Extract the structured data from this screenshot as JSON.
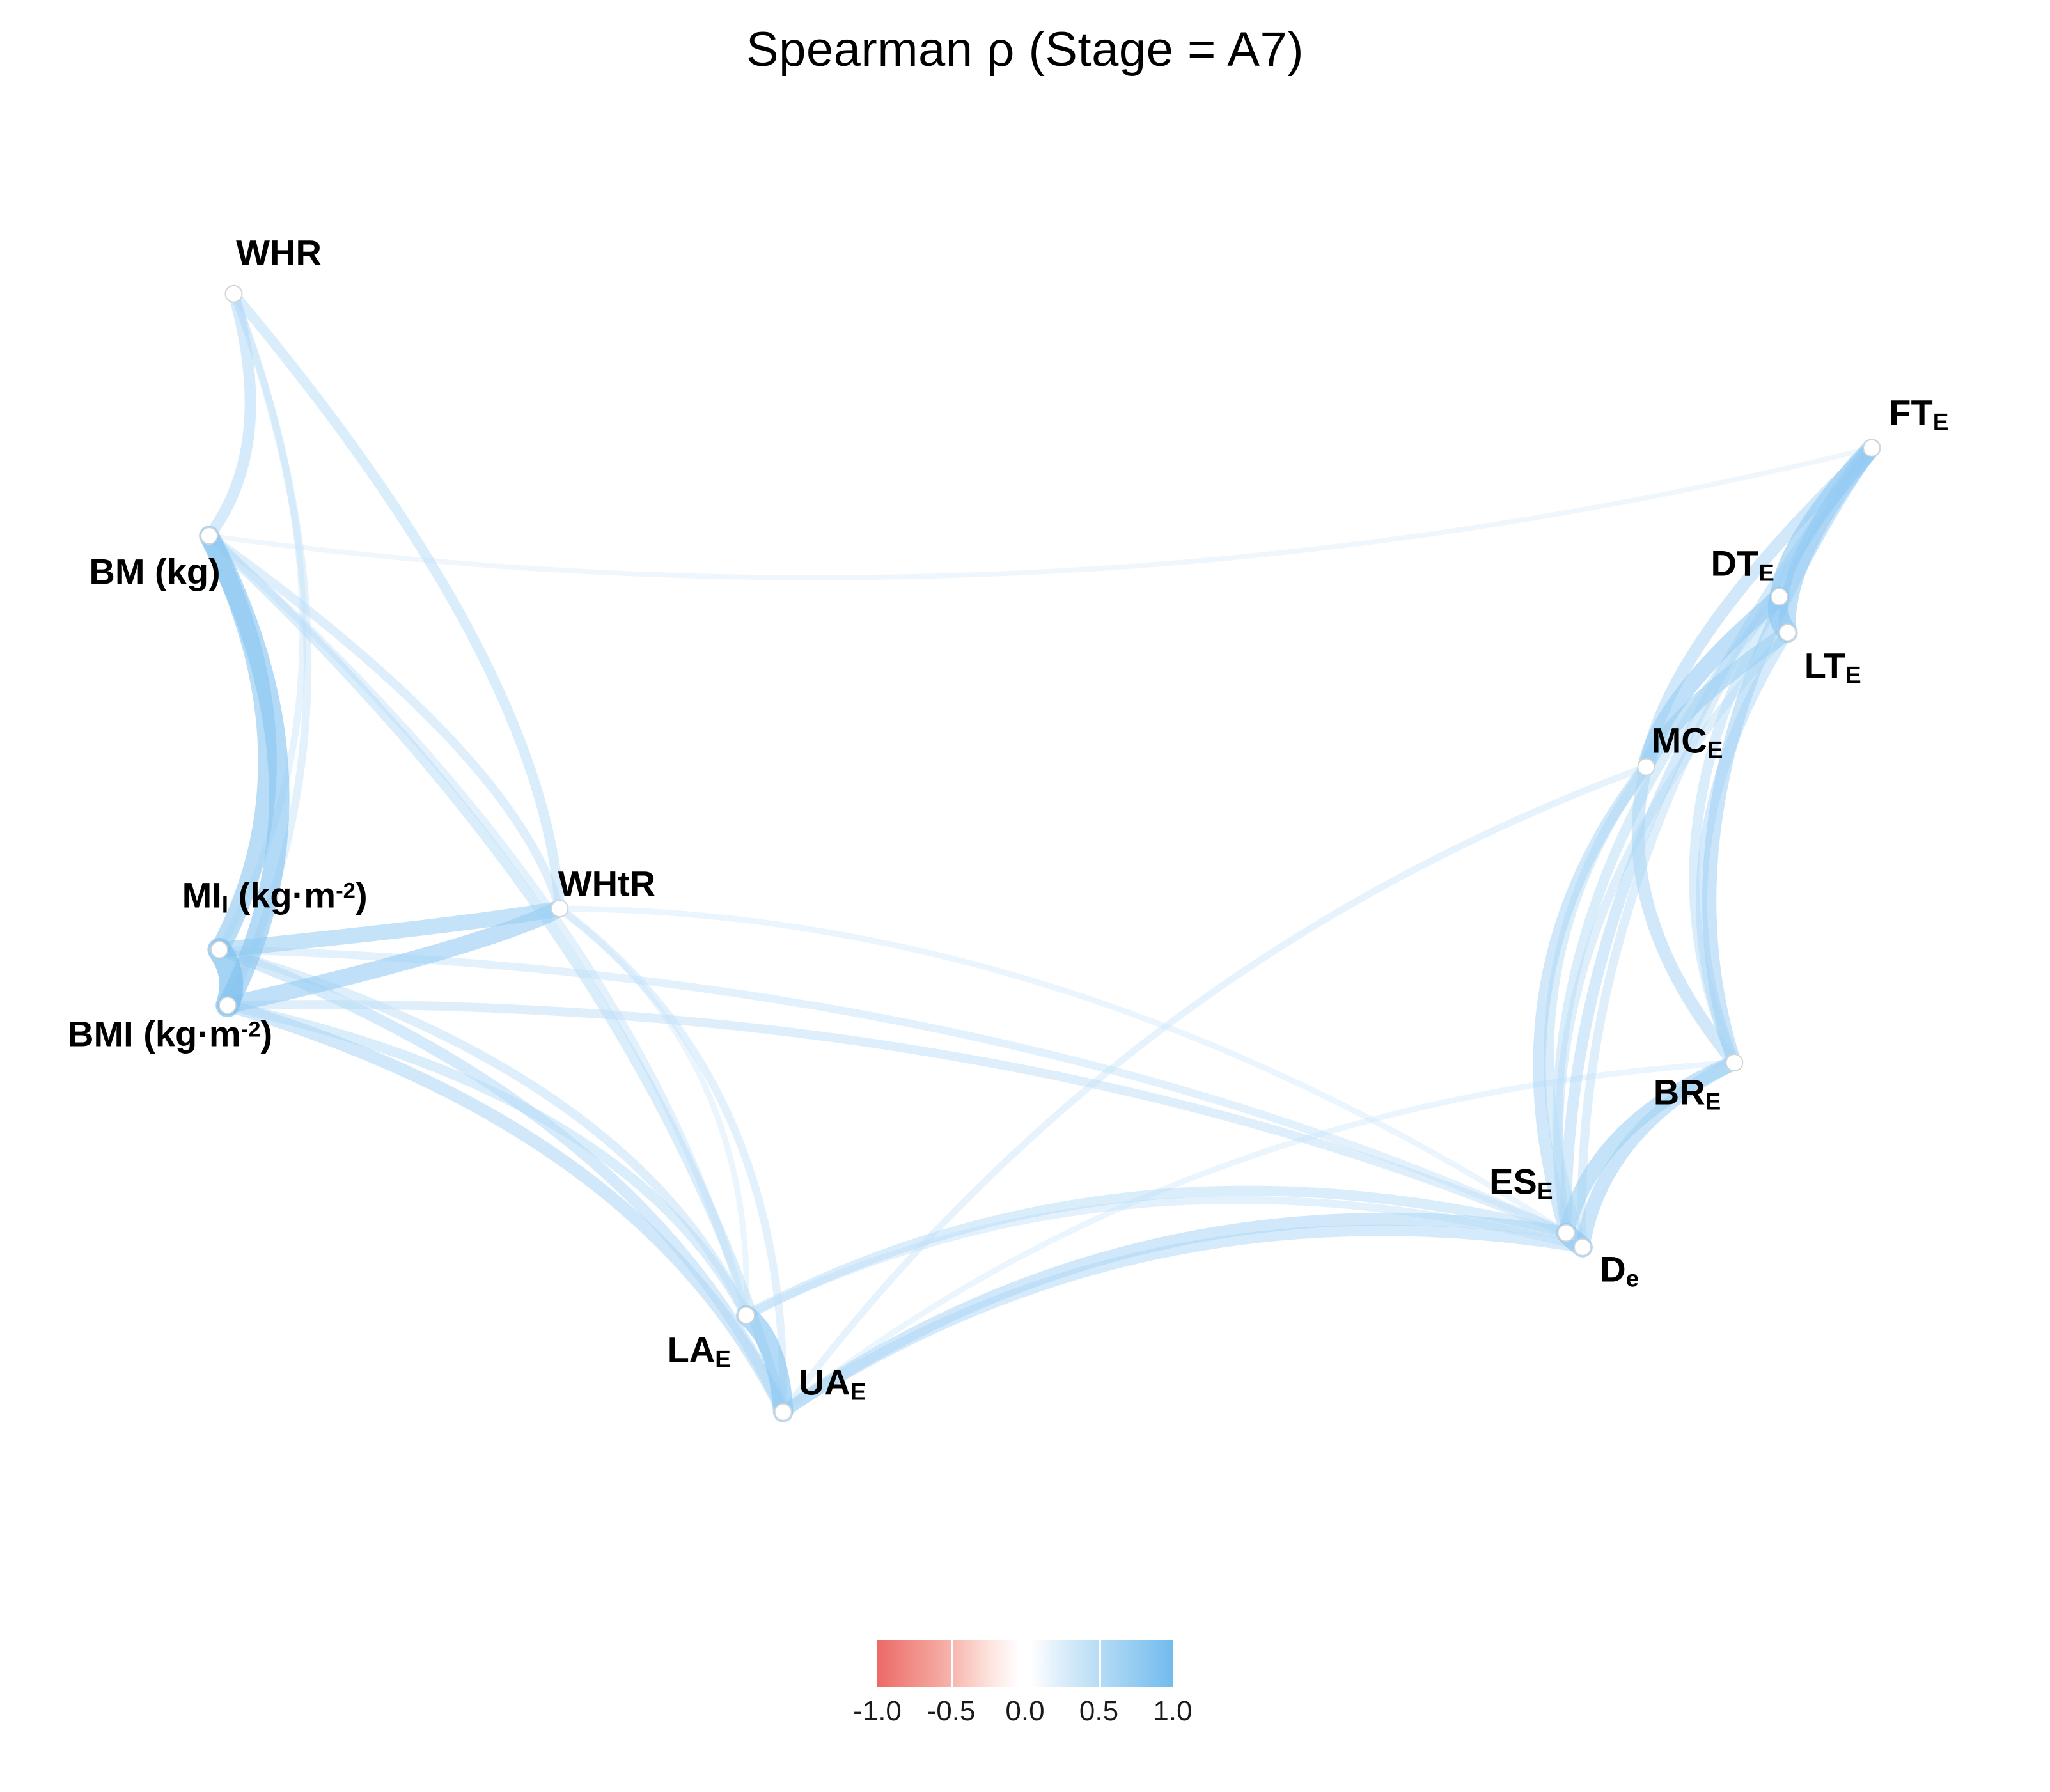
{
  "chart_data": {
    "type": "network",
    "title": "Spearman ρ (Stage = A7)",
    "legend": {
      "range": [
        -1,
        1
      ],
      "ticks": [
        "-1.0",
        "-0.5",
        "0.0",
        "0.5",
        "1.0"
      ],
      "color_min": "#ec6a66",
      "color_mid": "#ffffff",
      "color_max": "#72bbee"
    },
    "node_color": "#ffffff",
    "edge_color_weak": "#deeefb",
    "edge_color_strong": "#7ec1f0",
    "nodes": [
      {
        "id": "WHR",
        "x": 0.114,
        "y": 0.164,
        "lx": 0.136,
        "ly": 0.141,
        "parts": [
          {
            "t": "WHR"
          }
        ]
      },
      {
        "id": "BM",
        "x": 0.102,
        "y": 0.299,
        "lx": 0.0755,
        "ly": 0.319,
        "parts": [
          {
            "t": "BM (kg)"
          }
        ]
      },
      {
        "id": "MI",
        "x": 0.107,
        "y": 0.53,
        "lx": 0.134,
        "ly": 0.5,
        "parts": [
          {
            "t": "MI"
          },
          {
            "t": "I",
            "s": "sub"
          },
          {
            "t": " (kg·m"
          },
          {
            "t": "-2",
            "s": "sup"
          },
          {
            "t": ")"
          }
        ]
      },
      {
        "id": "BMI",
        "x": 0.111,
        "y": 0.561,
        "lx": 0.083,
        "ly": 0.577,
        "parts": [
          {
            "t": "BMI (kg·m"
          },
          {
            "t": "-2",
            "s": "sup"
          },
          {
            "t": ")"
          }
        ]
      },
      {
        "id": "WHtR",
        "x": 0.273,
        "y": 0.507,
        "lx": 0.296,
        "ly": 0.493,
        "parts": [
          {
            "t": "WHtR"
          }
        ]
      },
      {
        "id": "LA",
        "x": 0.364,
        "y": 0.734,
        "lx": 0.341,
        "ly": 0.754,
        "parts": [
          {
            "t": "LA"
          },
          {
            "t": "E",
            "s": "sub"
          }
        ]
      },
      {
        "id": "UA",
        "x": 0.382,
        "y": 0.788,
        "lx": 0.406,
        "ly": 0.772,
        "parts": [
          {
            "t": "UA"
          },
          {
            "t": "E",
            "s": "sub"
          }
        ]
      },
      {
        "id": "ES",
        "x": 0.764,
        "y": 0.688,
        "lx": 0.742,
        "ly": 0.66,
        "parts": [
          {
            "t": "ES"
          },
          {
            "t": "E",
            "s": "sub"
          }
        ]
      },
      {
        "id": "D",
        "x": 0.772,
        "y": 0.696,
        "lx": 0.79,
        "ly": 0.709,
        "parts": [
          {
            "t": "D"
          },
          {
            "t": "e",
            "s": "sub"
          }
        ]
      },
      {
        "id": "BR",
        "x": 0.846,
        "y": 0.593,
        "lx": 0.823,
        "ly": 0.61,
        "parts": [
          {
            "t": "BR"
          },
          {
            "t": "E",
            "s": "sub"
          }
        ]
      },
      {
        "id": "MC",
        "x": 0.803,
        "y": 0.428,
        "lx": 0.823,
        "ly": 0.414,
        "parts": [
          {
            "t": "MC"
          },
          {
            "t": "E",
            "s": "sub"
          }
        ]
      },
      {
        "id": "DT",
        "x": 0.868,
        "y": 0.333,
        "lx": 0.85,
        "ly": 0.315,
        "parts": [
          {
            "t": "DT"
          },
          {
            "t": "E",
            "s": "sub"
          }
        ]
      },
      {
        "id": "LT",
        "x": 0.872,
        "y": 0.353,
        "lx": 0.894,
        "ly": 0.372,
        "parts": [
          {
            "t": "LT"
          },
          {
            "t": "E",
            "s": "sub"
          }
        ]
      },
      {
        "id": "FT",
        "x": 0.913,
        "y": 0.25,
        "lx": 0.936,
        "ly": 0.231,
        "parts": [
          {
            "t": "FT"
          },
          {
            "t": "E",
            "s": "sub"
          }
        ]
      }
    ],
    "edges": [
      {
        "source": "WHR",
        "target": "BM",
        "rho": 0.55
      },
      {
        "source": "WHR",
        "target": "BMI",
        "rho": 0.4
      },
      {
        "source": "WHR",
        "target": "MI",
        "rho": 0.35
      },
      {
        "source": "WHR",
        "target": "WHtR",
        "rho": 0.5
      },
      {
        "source": "BM",
        "target": "MI",
        "rho": 0.8
      },
      {
        "source": "BM",
        "target": "BMI",
        "rho": 0.85
      },
      {
        "source": "MI",
        "target": "BMI",
        "rho": 0.95
      },
      {
        "source": "BM",
        "target": "WHtR",
        "rho": 0.45
      },
      {
        "source": "MI",
        "target": "WHtR",
        "rho": 0.7
      },
      {
        "source": "BMI",
        "target": "WHtR",
        "rho": 0.75
      },
      {
        "source": "BM",
        "target": "UA",
        "rho": 0.5
      },
      {
        "source": "BM",
        "target": "LA",
        "rho": 0.4
      },
      {
        "source": "MI",
        "target": "UA",
        "rho": 0.55
      },
      {
        "source": "MI",
        "target": "LA",
        "rho": 0.45
      },
      {
        "source": "BMI",
        "target": "UA",
        "rho": 0.6
      },
      {
        "source": "BMI",
        "target": "LA",
        "rho": 0.5
      },
      {
        "source": "WHtR",
        "target": "UA",
        "rho": 0.4
      },
      {
        "source": "WHtR",
        "target": "LA",
        "rho": 0.3
      },
      {
        "source": "LA",
        "target": "UA",
        "rho": 0.85
      },
      {
        "source": "LA",
        "target": "ES",
        "rho": 0.5
      },
      {
        "source": "UA",
        "target": "ES",
        "rho": 0.6
      },
      {
        "source": "LA",
        "target": "D",
        "rho": 0.4
      },
      {
        "source": "UA",
        "target": "D",
        "rho": 0.55
      },
      {
        "source": "UA",
        "target": "MC",
        "rho": 0.35
      },
      {
        "source": "UA",
        "target": "BR",
        "rho": 0.3
      },
      {
        "source": "BM",
        "target": "FT",
        "rho": 0.25
      },
      {
        "source": "BMI",
        "target": "ES",
        "rho": 0.45
      },
      {
        "source": "MI",
        "target": "ES",
        "rho": 0.4
      },
      {
        "source": "WHtR",
        "target": "ES",
        "rho": 0.3
      },
      {
        "source": "ES",
        "target": "D",
        "rho": 0.85
      },
      {
        "source": "ES",
        "target": "BR",
        "rho": 0.7
      },
      {
        "source": "D",
        "target": "BR",
        "rho": 0.65
      },
      {
        "source": "ES",
        "target": "MC",
        "rho": 0.6
      },
      {
        "source": "D",
        "target": "MC",
        "rho": 0.5
      },
      {
        "source": "ES",
        "target": "LT",
        "rho": 0.45
      },
      {
        "source": "ES",
        "target": "DT",
        "rho": 0.5
      },
      {
        "source": "ES",
        "target": "FT",
        "rho": 0.55
      },
      {
        "source": "D",
        "target": "FT",
        "rho": 0.45
      },
      {
        "source": "BR",
        "target": "MC",
        "rho": 0.6
      },
      {
        "source": "BR",
        "target": "LT",
        "rho": 0.55
      },
      {
        "source": "BR",
        "target": "DT",
        "rho": 0.5
      },
      {
        "source": "BR",
        "target": "FT",
        "rho": 0.65
      },
      {
        "source": "MC",
        "target": "DT",
        "rho": 0.75
      },
      {
        "source": "MC",
        "target": "LT",
        "rho": 0.7
      },
      {
        "source": "MC",
        "target": "FT",
        "rho": 0.6
      },
      {
        "source": "DT",
        "target": "LT",
        "rho": 0.85
      },
      {
        "source": "DT",
        "target": "FT",
        "rho": 0.8
      },
      {
        "source": "LT",
        "target": "FT",
        "rho": 0.75
      }
    ]
  }
}
